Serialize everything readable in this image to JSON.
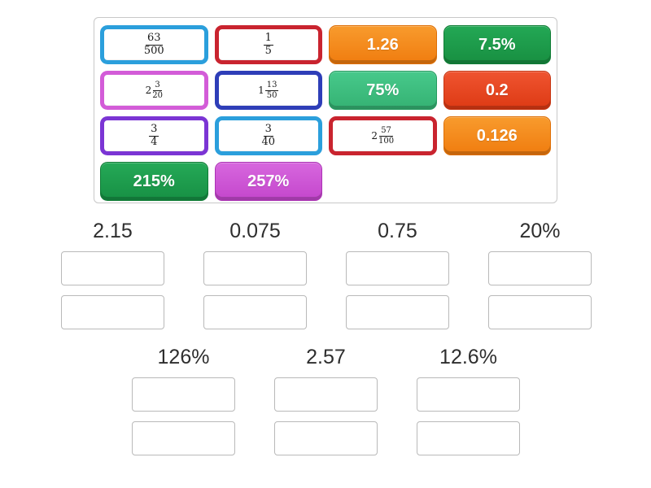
{
  "page": {
    "background": "#ffffff",
    "pool_border_color": "#c8c8c8",
    "slot_border_color": "#b9b9b9",
    "label_text_color": "#2e2e2e",
    "fraction_text_color": "#1a1a1a"
  },
  "pool": {
    "cards": [
      {
        "kind": "fraction",
        "whole": "",
        "num": "63",
        "den": "500",
        "border": "#2b9fdc"
      },
      {
        "kind": "fraction",
        "whole": "",
        "num": "1",
        "den": "5",
        "border": "#c9242f"
      },
      {
        "kind": "value",
        "text": "1.26",
        "bg": "#f89b2d",
        "bg2": "#f07c0f",
        "edge": "#de6f06"
      },
      {
        "kind": "value",
        "text": "7.5%",
        "bg": "#23a855",
        "bg2": "#188f41",
        "edge": "#0f7c35"
      },
      {
        "kind": "fraction",
        "whole": "2",
        "num": "3",
        "den": "20",
        "border": "#d35cd8"
      },
      {
        "kind": "fraction",
        "whole": "1",
        "num": "13",
        "den": "50",
        "border": "#2e3eb8"
      },
      {
        "kind": "value",
        "text": "75%",
        "bg": "#47c98b",
        "bg2": "#35b273",
        "edge": "#259a5f"
      },
      {
        "kind": "value",
        "text": "0.2",
        "bg": "#ef5430",
        "bg2": "#dd3a14",
        "edge": "#c63511"
      },
      {
        "kind": "fraction",
        "whole": "",
        "num": "3",
        "den": "4",
        "border": "#7b35d4"
      },
      {
        "kind": "fraction",
        "whole": "",
        "num": "3",
        "den": "40",
        "border": "#2b9fdc"
      },
      {
        "kind": "fraction",
        "whole": "2",
        "num": "57",
        "den": "100",
        "border": "#c9242f"
      },
      {
        "kind": "value",
        "text": "0.126",
        "bg": "#f89b2d",
        "bg2": "#f07c0f",
        "edge": "#de6f06"
      },
      {
        "kind": "value",
        "text": "215%",
        "bg": "#25a957",
        "bg2": "#179044",
        "edge": "#0f7c35"
      },
      {
        "kind": "value",
        "text": "257%",
        "bg": "#d767de",
        "bg2": "#c446cc",
        "edge": "#ab32b4"
      }
    ]
  },
  "groups": {
    "top_row": [
      {
        "label": "2.15",
        "slots": 2
      },
      {
        "label": "0.075",
        "slots": 2
      },
      {
        "label": "0.75",
        "slots": 2
      },
      {
        "label": "20%",
        "slots": 2
      }
    ],
    "bottom_row": [
      {
        "label": "126%",
        "slots": 2
      },
      {
        "label": "2.57",
        "slots": 2
      },
      {
        "label": "12.6%",
        "slots": 2
      }
    ]
  }
}
